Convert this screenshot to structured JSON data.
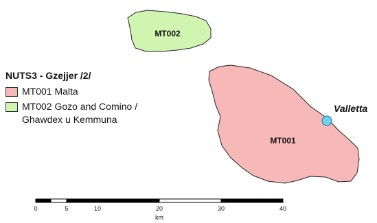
{
  "legend": {
    "title": "NUTS3 - Gzejjer /2/",
    "items": [
      {
        "code_label": "MT001 Malta",
        "line2": "",
        "color": "#f7b8b8"
      },
      {
        "code_label": "MT002 Gozo and Comino /",
        "line2": "Ghawdex u Kemmuna",
        "color": "#cff5b0"
      }
    ]
  },
  "regions": [
    {
      "code": "MT001",
      "name": "Malta",
      "color": "#f7b8b8"
    },
    {
      "code": "MT002",
      "name": "Gozo and Comino / Ghawdex u Kemmuna",
      "color": "#cff5b0"
    }
  ],
  "capital": {
    "name": "Valletta",
    "marker_color": "#6cd3ee"
  },
  "scalebar": {
    "unit": "km",
    "ticks": [
      "0",
      "5",
      "10",
      "20",
      "30",
      "40"
    ]
  }
}
